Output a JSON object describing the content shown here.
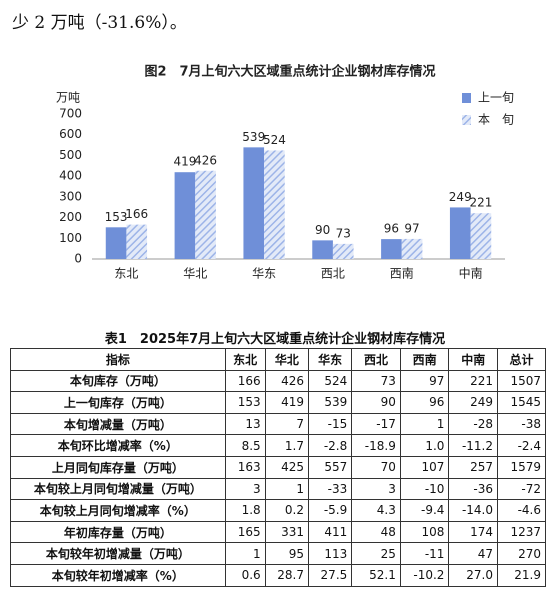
{
  "intro_text": "少 2 万吨（-31.6%）。",
  "chart_data": {
    "type": "bar",
    "title": "图2　7月上旬六大区域重点统计企业钢材库存情况",
    "y_label": "万吨",
    "categories": [
      "东北",
      "华北",
      "华东",
      "西北",
      "西南",
      "中南"
    ],
    "series": [
      {
        "name": "上一旬",
        "color": "#6f8fd8",
        "values": [
          153,
          419,
          539,
          90,
          96,
          249
        ]
      },
      {
        "name": "本　旬",
        "color": "#9db4e8",
        "hatch": true,
        "values": [
          166,
          426,
          524,
          73,
          97,
          221
        ]
      }
    ],
    "ylim": [
      0,
      700
    ],
    "yticks": [
      0,
      100,
      200,
      300,
      400,
      500,
      600,
      700
    ],
    "legend": "top-right",
    "grid": false
  },
  "table": {
    "title": "表1　2025年7月上旬六大区域重点统计企业钢材库存情况",
    "header": [
      "指标",
      "东北",
      "华北",
      "华东",
      "西北",
      "西南",
      "中南",
      "总计"
    ],
    "rows": [
      [
        "本旬库存（万吨）",
        "166",
        "426",
        "524",
        "73",
        "97",
        "221",
        "1507"
      ],
      [
        "上一旬库存（万吨）",
        "153",
        "419",
        "539",
        "90",
        "96",
        "249",
        "1545"
      ],
      [
        "本旬增减量（万吨）",
        "13",
        "7",
        "-15",
        "-17",
        "1",
        "-28",
        "-38"
      ],
      [
        "本旬环比增减率（%）",
        "8.5",
        "1.7",
        "-2.8",
        "-18.9",
        "1.0",
        "-11.2",
        "-2.4"
      ],
      [
        "上月同旬库存量（万吨）",
        "163",
        "425",
        "557",
        "70",
        "107",
        "257",
        "1579"
      ],
      [
        "本旬较上月同旬增减量（万吨）",
        "3",
        "1",
        "-33",
        "3",
        "-10",
        "-36",
        "-72"
      ],
      [
        "本旬较上月同旬增减率（%）",
        "1.8",
        "0.2",
        "-5.9",
        "4.3",
        "-9.4",
        "-14.0",
        "-4.6"
      ],
      [
        "年初库存量（万吨）",
        "165",
        "331",
        "411",
        "48",
        "108",
        "174",
        "1237"
      ],
      [
        "本旬较年初增减量（万吨）",
        "1",
        "95",
        "113",
        "25",
        "-11",
        "47",
        "270"
      ],
      [
        "本旬较年初增减率（%）",
        "0.6",
        "28.7",
        "27.5",
        "52.1",
        "-10.2",
        "27.0",
        "21.9"
      ]
    ]
  }
}
